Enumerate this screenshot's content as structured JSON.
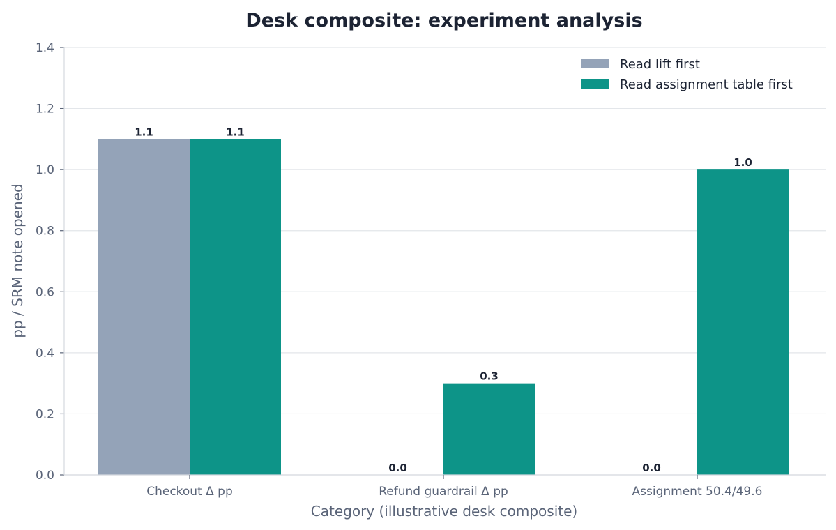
{
  "chart_data": {
    "type": "bar",
    "title": "Desk composite: experiment analysis",
    "xlabel": "Category (illustrative desk composite)",
    "ylabel": "pp / SRM note opened",
    "categories": [
      "Checkout Δ pp",
      "Refund guardrail Δ pp",
      "Assignment 50.4/49.6"
    ],
    "series": [
      {
        "name": "Read lift first",
        "color": "#94a3b8",
        "values": [
          1.1,
          0.0,
          0.0
        ]
      },
      {
        "name": "Read assignment table first",
        "color": "#0d9488",
        "values": [
          1.1,
          0.3,
          1.0
        ]
      }
    ],
    "ylim": [
      0,
      1.4
    ],
    "yticks": [
      0.0,
      0.2,
      0.4,
      0.6,
      0.8,
      1.0,
      1.2,
      1.4
    ],
    "grid": true,
    "legend_position": "top-right"
  }
}
